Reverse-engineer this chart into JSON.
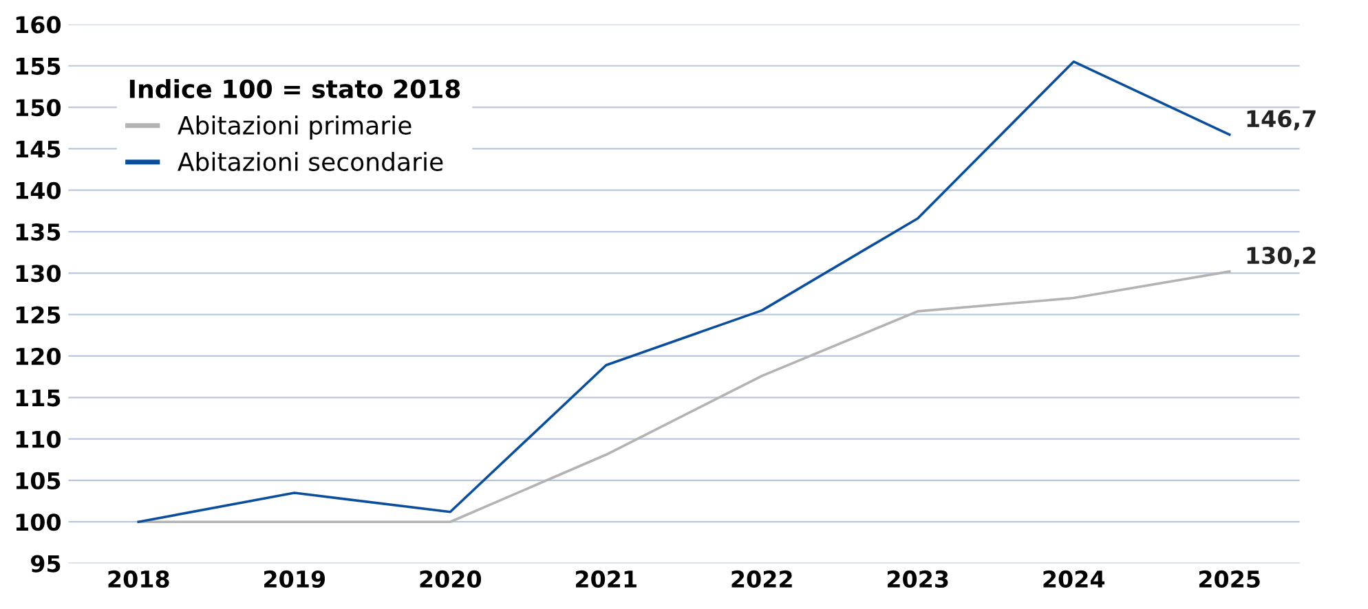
{
  "chart_data": {
    "type": "line",
    "categories": [
      "2018",
      "2019",
      "2020",
      "2021",
      "2022",
      "2023",
      "2024",
      "2025"
    ],
    "series": [
      {
        "name": "Abitazioni primarie",
        "color": "#b3b3b3",
        "values": [
          100,
          100,
          100,
          108.1,
          117.6,
          125.4,
          127.0,
          130.2
        ],
        "value_labels": [
          null,
          null,
          null,
          null,
          null,
          null,
          null,
          "130,2"
        ]
      },
      {
        "name": "Abitazioni secondarie",
        "color": "#0b4f9c",
        "values": [
          100,
          103.5,
          101.2,
          118.9,
          125.5,
          136.6,
          155.5,
          146.7
        ],
        "value_labels": [
          null,
          null,
          null,
          null,
          null,
          null,
          null,
          "146,7"
        ]
      }
    ],
    "legend_title": "Indice 100 = stato 2018",
    "legend": "top left",
    "ylim": [
      95,
      160
    ],
    "yticks": [
      95,
      100,
      105,
      110,
      115,
      120,
      125,
      130,
      135,
      140,
      145,
      150,
      155,
      160
    ],
    "grid": "y",
    "marker": "none",
    "line_style": "solid"
  }
}
